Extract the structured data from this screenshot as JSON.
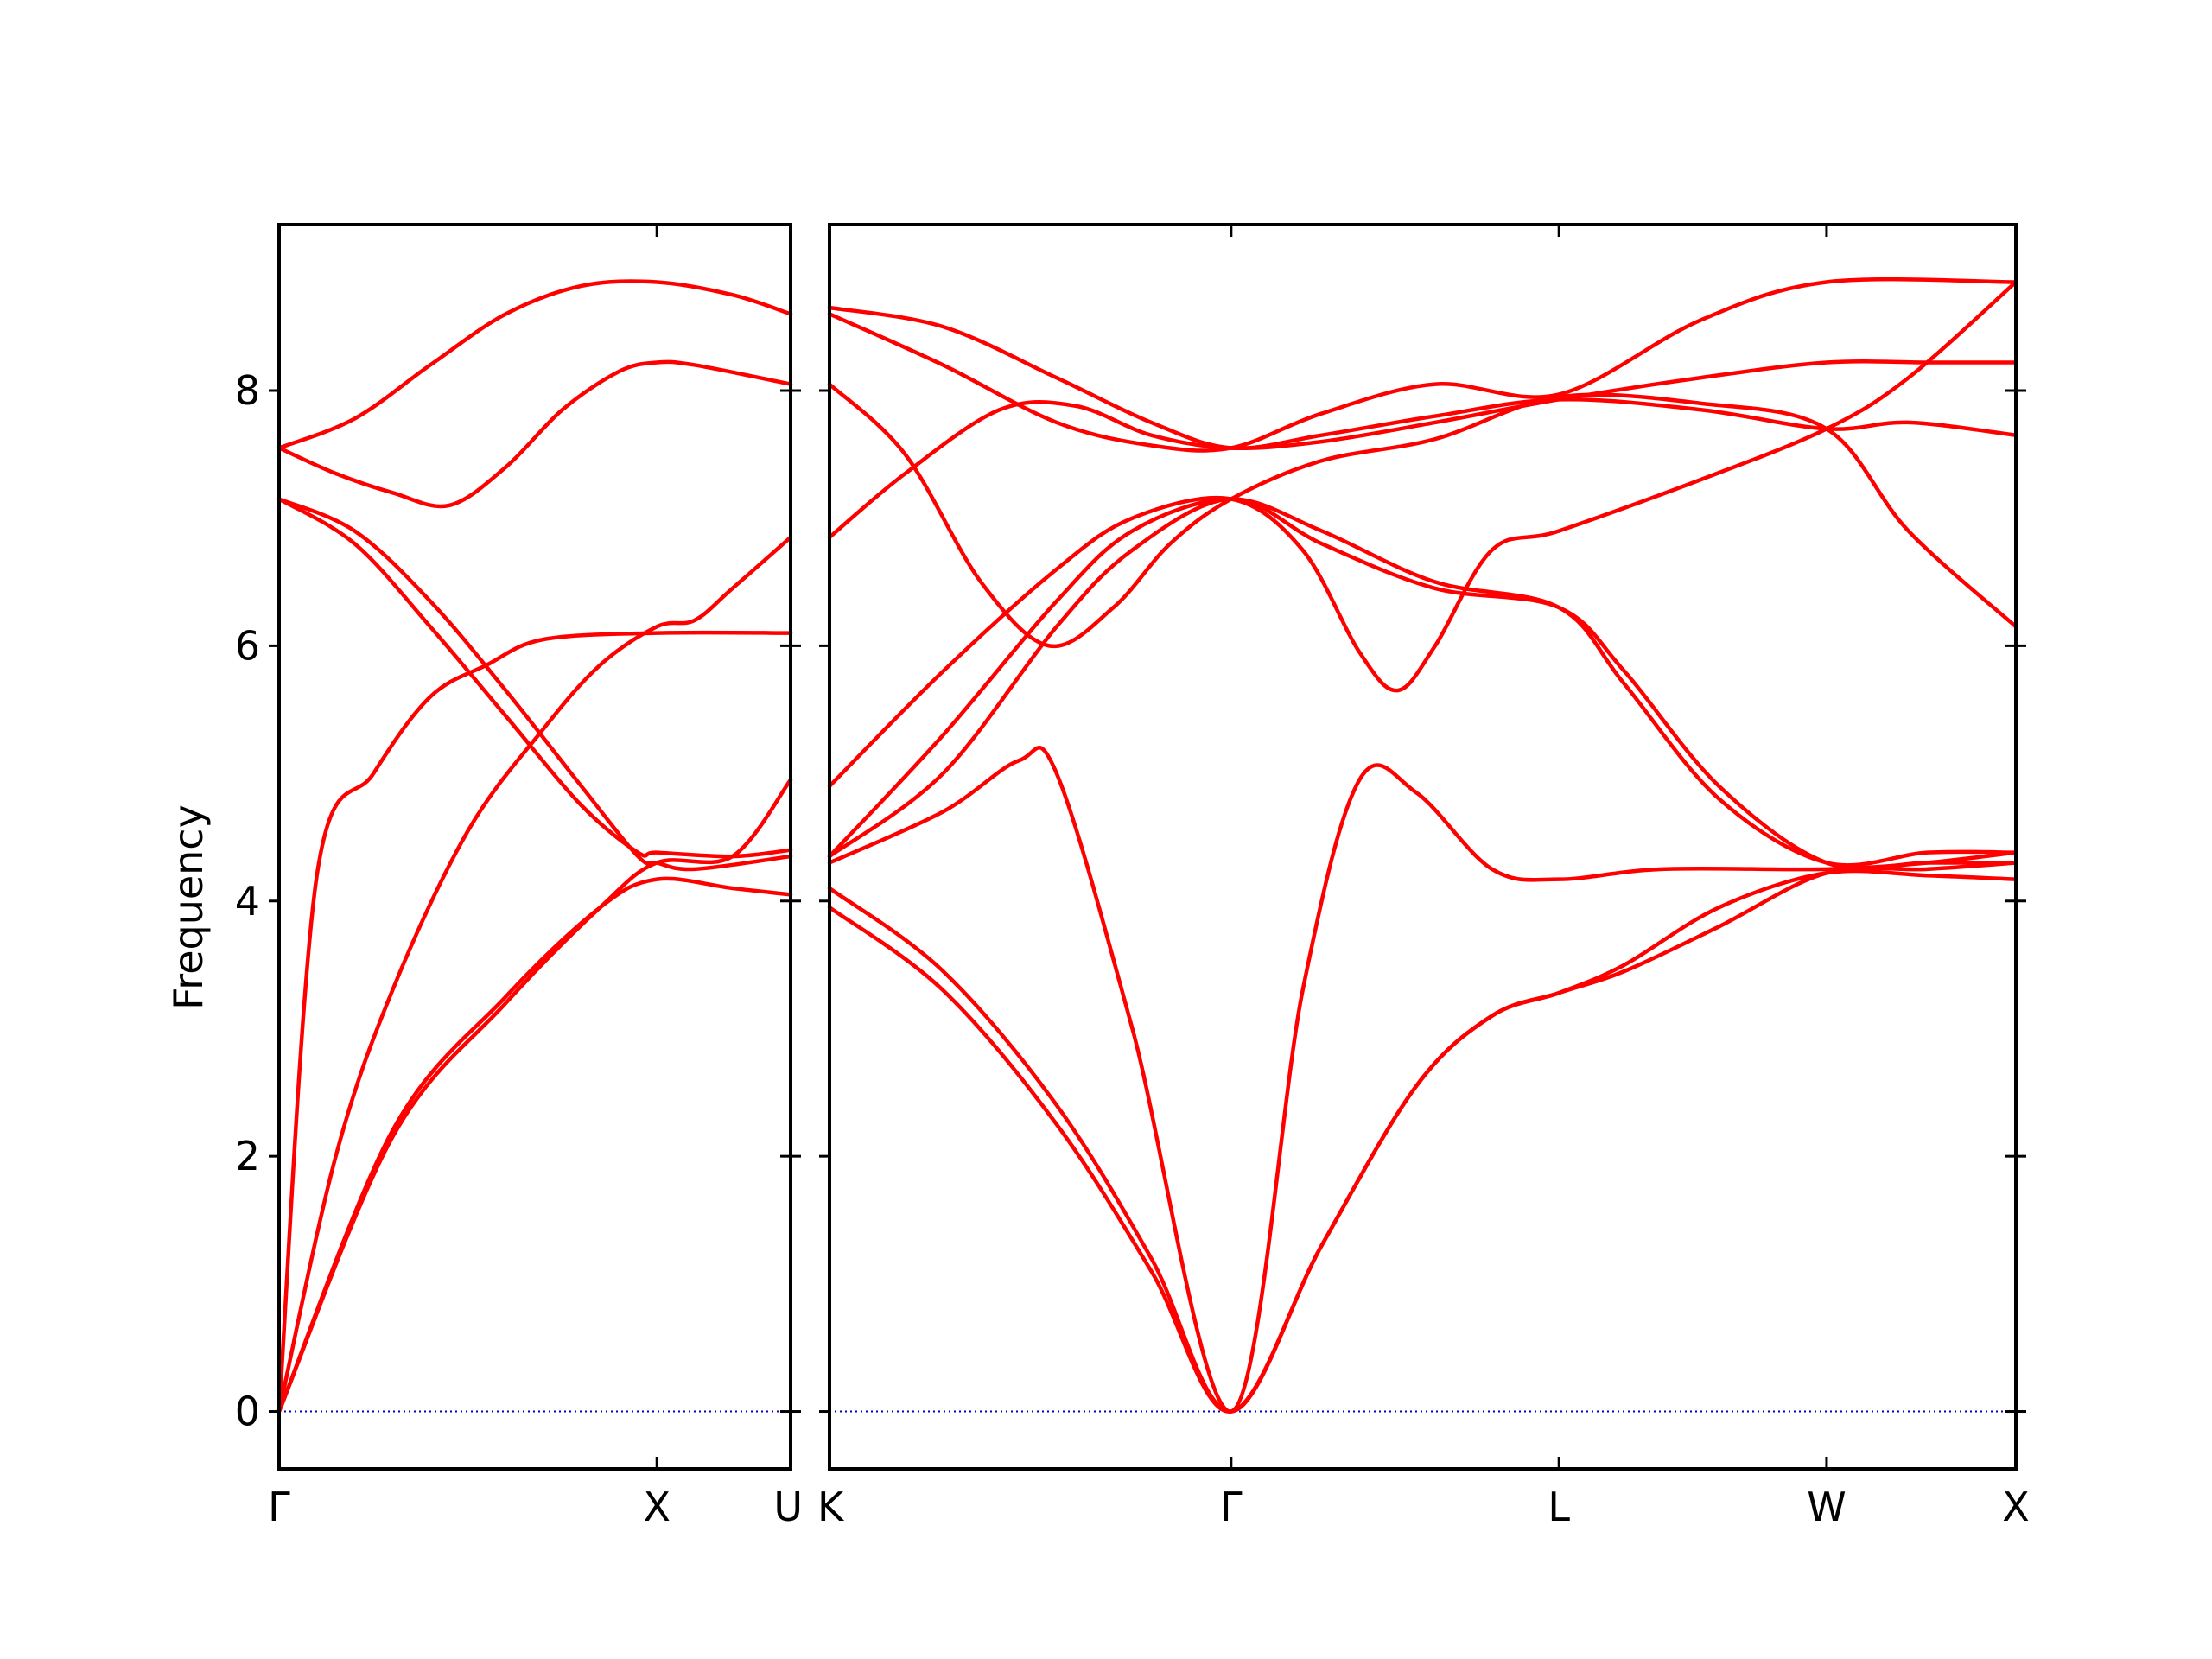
{
  "chart_data": {
    "type": "line",
    "ylabel": "Frequency",
    "ylim": [
      -0.45,
      9.3
    ],
    "yticks": [
      0,
      2,
      4,
      6,
      8
    ],
    "series_color": "#ff0000",
    "zero_line_color": "#0000cc",
    "grid": false,
    "panels": [
      {
        "xticks": [
          {
            "pos": 0.0,
            "label": "Γ"
          },
          {
            "pos": 1.0,
            "label": "X"
          },
          {
            "pos": 1.354,
            "label": "U"
          }
        ],
        "xlim": [
          0,
          1.354
        ],
        "bands": [
          [
            [
              0,
              0
            ],
            [
              0.15,
              2.0
            ],
            [
              0.3,
              3.3
            ],
            [
              0.5,
              4.55
            ],
            [
              0.7,
              5.35
            ],
            [
              0.85,
              5.85
            ],
            [
              1.0,
              6.15
            ],
            [
              1.1,
              6.2
            ],
            [
              1.2,
              6.45
            ],
            [
              1.354,
              6.85
            ]
          ],
          [
            [
              0,
              7.55
            ],
            [
              0.15,
              7.35
            ],
            [
              0.3,
              7.2
            ],
            [
              0.45,
              7.1
            ],
            [
              0.6,
              7.4
            ],
            [
              0.75,
              7.85
            ],
            [
              0.9,
              8.15
            ],
            [
              1.0,
              8.22
            ],
            [
              1.1,
              8.2
            ],
            [
              1.354,
              8.05
            ]
          ],
          [
            [
              0,
              7.55
            ],
            [
              0.2,
              7.78
            ],
            [
              0.4,
              8.2
            ],
            [
              0.6,
              8.6
            ],
            [
              0.8,
              8.82
            ],
            [
              1.0,
              8.85
            ],
            [
              1.2,
              8.75
            ],
            [
              1.354,
              8.6
            ]
          ],
          [
            [
              0,
              7.15
            ],
            [
              0.2,
              6.9
            ],
            [
              0.4,
              6.35
            ],
            [
              0.6,
              5.65
            ],
            [
              0.8,
              4.9
            ],
            [
              0.95,
              4.35
            ],
            [
              1.0,
              4.3
            ],
            [
              1.1,
              4.25
            ],
            [
              1.354,
              4.35
            ]
          ],
          [
            [
              0,
              7.15
            ],
            [
              0.2,
              6.8
            ],
            [
              0.4,
              6.15
            ],
            [
              0.6,
              5.45
            ],
            [
              0.8,
              4.75
            ],
            [
              0.95,
              4.38
            ],
            [
              1.0,
              4.38
            ],
            [
              1.2,
              4.35
            ],
            [
              1.354,
              4.4
            ]
          ],
          [
            [
              0,
              0
            ],
            [
              0.1,
              4.2
            ],
            [
              0.25,
              5.0
            ],
            [
              0.4,
              5.6
            ],
            [
              0.55,
              5.85
            ],
            [
              0.7,
              6.05
            ],
            [
              1.0,
              6.1
            ],
            [
              1.354,
              6.1
            ]
          ],
          [
            [
              0,
              0
            ],
            [
              0.3,
              2.2
            ],
            [
              0.6,
              3.25
            ],
            [
              0.85,
              3.95
            ],
            [
              1.0,
              4.17
            ],
            [
              1.2,
              4.1
            ],
            [
              1.354,
              4.05
            ]
          ],
          [
            [
              0,
              0
            ],
            [
              0.3,
              2.15
            ],
            [
              0.6,
              3.2
            ],
            [
              0.85,
              3.95
            ],
            [
              1.0,
              4.3
            ],
            [
              1.2,
              4.35
            ],
            [
              1.354,
              4.95
            ]
          ]
        ]
      },
      {
        "xticks": [
          {
            "pos": 0.0,
            "label": "K"
          },
          {
            "pos": 1.061,
            "label": "Γ"
          },
          {
            "pos": 1.927,
            "label": "L"
          },
          {
            "pos": 2.634,
            "label": "W"
          },
          {
            "pos": 3.134,
            "label": "X"
          }
        ],
        "xlim": [
          0,
          3.134
        ],
        "bands": [
          [
            [
              0,
              4.1
            ],
            [
              0.3,
              3.45
            ],
            [
              0.6,
              2.4
            ],
            [
              0.85,
              1.2
            ],
            [
              1.061,
              0
            ],
            [
              1.3,
              1.3
            ],
            [
              1.55,
              2.55
            ],
            [
              1.75,
              3.1
            ],
            [
              1.927,
              3.28
            ],
            [
              2.1,
              3.45
            ],
            [
              2.35,
              3.8
            ],
            [
              2.634,
              4.22
            ],
            [
              2.9,
              4.25
            ],
            [
              3.134,
              4.3
            ]
          ],
          [
            [
              0,
              3.95
            ],
            [
              0.3,
              3.3
            ],
            [
              0.6,
              2.25
            ],
            [
              0.85,
              1.1
            ],
            [
              1.061,
              0
            ],
            [
              1.3,
              1.3
            ],
            [
              1.55,
              2.55
            ],
            [
              1.75,
              3.1
            ],
            [
              1.927,
              3.28
            ],
            [
              2.1,
              3.5
            ],
            [
              2.35,
              3.95
            ],
            [
              2.634,
              4.22
            ],
            [
              2.9,
              4.2
            ],
            [
              3.134,
              4.17
            ]
          ],
          [
            [
              0,
              4.3
            ],
            [
              0.3,
              4.7
            ],
            [
              0.5,
              5.1
            ],
            [
              0.6,
              5.0
            ],
            [
              0.8,
              3.0
            ],
            [
              1.061,
              0
            ],
            [
              1.25,
              3.3
            ],
            [
              1.4,
              4.95
            ],
            [
              1.55,
              4.85
            ],
            [
              1.75,
              4.25
            ],
            [
              1.927,
              4.17
            ],
            [
              2.2,
              4.25
            ],
            [
              2.634,
              4.25
            ],
            [
              2.9,
              4.3
            ],
            [
              3.134,
              4.38
            ]
          ],
          [
            [
              0,
              4.35
            ],
            [
              0.3,
              5.0
            ],
            [
              0.6,
              6.15
            ],
            [
              0.8,
              6.75
            ],
            [
              1.061,
              7.15
            ],
            [
              1.3,
              6.8
            ],
            [
              1.6,
              6.45
            ],
            [
              1.927,
              6.3
            ],
            [
              2.1,
              5.8
            ],
            [
              2.35,
              4.9
            ],
            [
              2.634,
              4.3
            ],
            [
              2.9,
              4.3
            ],
            [
              3.134,
              4.3
            ]
          ],
          [
            [
              0,
              4.35
            ],
            [
              0.3,
              5.3
            ],
            [
              0.6,
              6.35
            ],
            [
              0.8,
              6.9
            ],
            [
              1.061,
              7.15
            ],
            [
              1.3,
              6.9
            ],
            [
              1.6,
              6.5
            ],
            [
              1.927,
              6.3
            ],
            [
              2.1,
              5.7
            ],
            [
              2.35,
              4.8
            ],
            [
              2.634,
              4.3
            ],
            [
              2.9,
              4.38
            ],
            [
              3.134,
              4.38
            ]
          ],
          [
            [
              0,
              4.9
            ],
            [
              0.3,
              5.8
            ],
            [
              0.6,
              6.6
            ],
            [
              0.8,
              7.0
            ],
            [
              1.061,
              7.15
            ],
            [
              1.25,
              6.75
            ],
            [
              1.4,
              5.95
            ],
            [
              1.5,
              5.65
            ],
            [
              1.6,
              6.0
            ],
            [
              1.75,
              6.75
            ],
            [
              1.927,
              6.9
            ],
            [
              2.3,
              7.3
            ],
            [
              2.634,
              7.7
            ],
            [
              2.85,
              8.1
            ],
            [
              3.134,
              8.85
            ]
          ],
          [
            [
              0,
              6.85
            ],
            [
              0.2,
              7.35
            ],
            [
              0.45,
              7.85
            ],
            [
              0.65,
              7.88
            ],
            [
              0.85,
              7.65
            ],
            [
              1.061,
              7.55
            ],
            [
              1.3,
              7.6
            ],
            [
              1.6,
              7.75
            ],
            [
              1.927,
              7.93
            ],
            [
              2.3,
              8.1
            ],
            [
              2.634,
              8.22
            ],
            [
              2.9,
              8.22
            ],
            [
              3.134,
              8.22
            ]
          ],
          [
            [
              0,
              8.05
            ],
            [
              0.2,
              7.5
            ],
            [
              0.4,
              6.5
            ],
            [
              0.58,
              6.0
            ],
            [
              0.75,
              6.3
            ],
            [
              0.9,
              6.8
            ],
            [
              1.061,
              7.15
            ],
            [
              1.3,
              7.45
            ],
            [
              1.6,
              7.62
            ],
            [
              1.927,
              7.95
            ],
            [
              2.3,
              7.9
            ],
            [
              2.634,
              7.7
            ],
            [
              2.85,
              6.9
            ],
            [
              3.134,
              6.15
            ]
          ],
          [
            [
              0,
              8.6
            ],
            [
              0.3,
              8.2
            ],
            [
              0.6,
              7.75
            ],
            [
              0.85,
              7.57
            ],
            [
              1.061,
              7.55
            ],
            [
              1.3,
              7.82
            ],
            [
              1.6,
              8.05
            ],
            [
              1.927,
              7.97
            ],
            [
              2.3,
              8.55
            ],
            [
              2.634,
              8.85
            ],
            [
              3.134,
              8.85
            ]
          ],
          [
            [
              0,
              8.65
            ],
            [
              0.3,
              8.5
            ],
            [
              0.6,
              8.1
            ],
            [
              0.85,
              7.75
            ],
            [
              1.061,
              7.55
            ],
            [
              1.3,
              7.65
            ],
            [
              1.6,
              7.8
            ],
            [
              1.927,
              7.93
            ],
            [
              2.3,
              7.85
            ],
            [
              2.634,
              7.7
            ],
            [
              2.85,
              7.75
            ],
            [
              3.134,
              7.65
            ]
          ]
        ]
      }
    ]
  }
}
